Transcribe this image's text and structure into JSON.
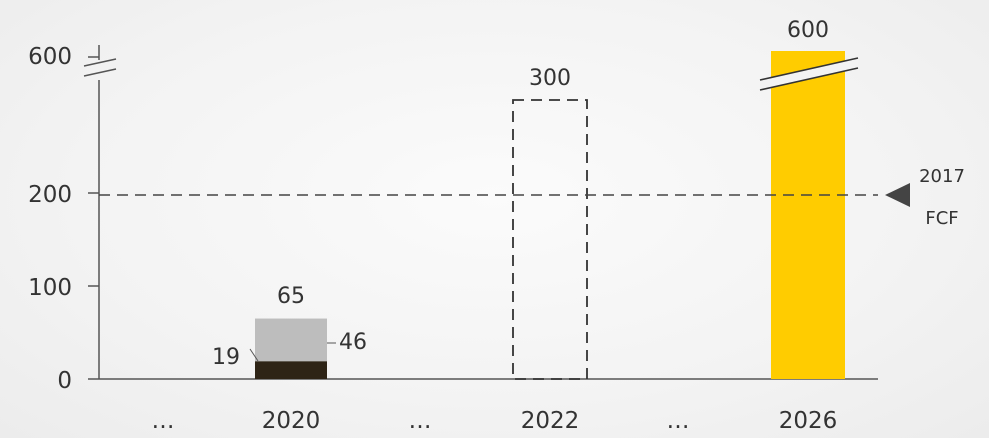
{
  "chart_data": {
    "type": "bar",
    "categories": [
      "…",
      "2020",
      "…",
      "2022",
      "…",
      "2026"
    ],
    "y_ticks": [
      "0",
      "100",
      "200",
      "600"
    ],
    "ylim": [
      0,
      600
    ],
    "axis_break": true,
    "bars": {
      "2020": {
        "total_label": "65",
        "segments": [
          {
            "value": 19,
            "label": "19",
            "color": "#2e2416"
          },
          {
            "value": 46,
            "label": "46",
            "color": "#bdbdbd"
          }
        ]
      },
      "2022": {
        "value": 300,
        "label": "300",
        "style": "dashed-outline"
      },
      "2026": {
        "value": 600,
        "label": "600",
        "color": "#ffcc00",
        "broken": true
      }
    },
    "reference_line": {
      "value": 200,
      "label_line1": "2017",
      "label_line2": "FCF",
      "marker": "triangle-left"
    },
    "colors": {
      "axis": "#555555",
      "dark": "#2e2416",
      "grey": "#bdbdbd",
      "yellow": "#ffcc00",
      "text": "#333333"
    }
  }
}
